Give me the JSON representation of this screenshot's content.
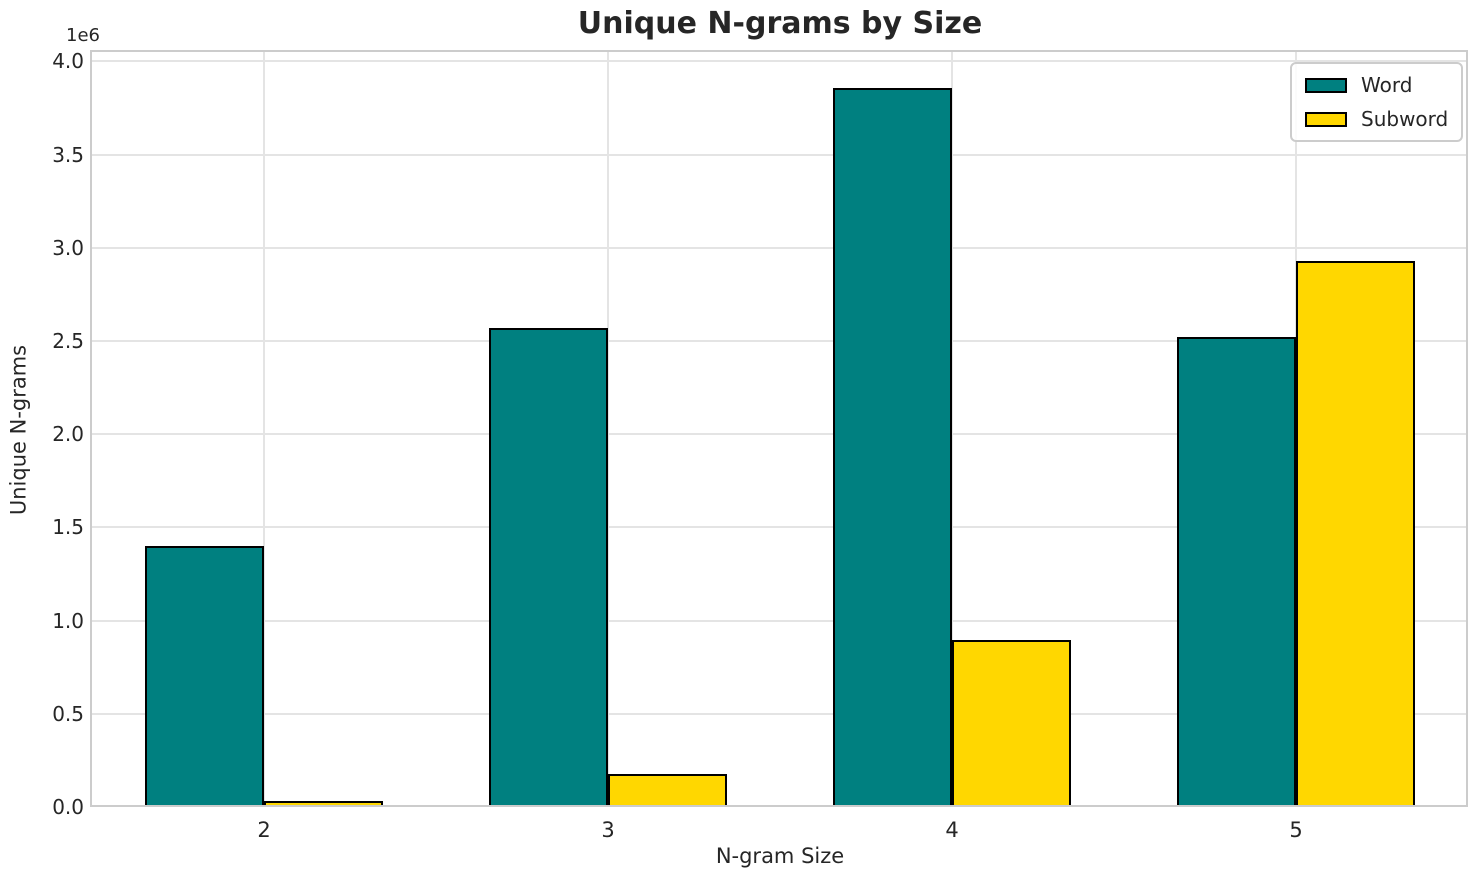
{
  "chart_data": {
    "type": "bar",
    "title": "Unique N-grams by Size",
    "xlabel": "N-gram Size",
    "ylabel": "Unique N-grams",
    "offset_text": "1e6",
    "categories": [
      "2",
      "3",
      "4",
      "5"
    ],
    "series": [
      {
        "name": "Word",
        "color": "#008080",
        "values": [
          1400000,
          2570000,
          3855000,
          2520000
        ]
      },
      {
        "name": "Subword",
        "color": "#FFD700",
        "values": [
          30000,
          175000,
          895000,
          2930000
        ]
      }
    ],
    "ylim": [
      0,
      4050000
    ],
    "yticks": [
      0,
      500000,
      1000000,
      1500000,
      2000000,
      2500000,
      3000000,
      3500000,
      4000000
    ],
    "ytick_labels": [
      "0.0",
      "0.5",
      "1.0",
      "1.5",
      "2.0",
      "2.5",
      "3.0",
      "3.5",
      "4.0"
    ],
    "grid": true,
    "legend_position": "upper right",
    "bar_edge_color": "#000000",
    "grid_color": "#e4e4e4",
    "spine_color": "#cccccc",
    "text_color": "#262626"
  }
}
